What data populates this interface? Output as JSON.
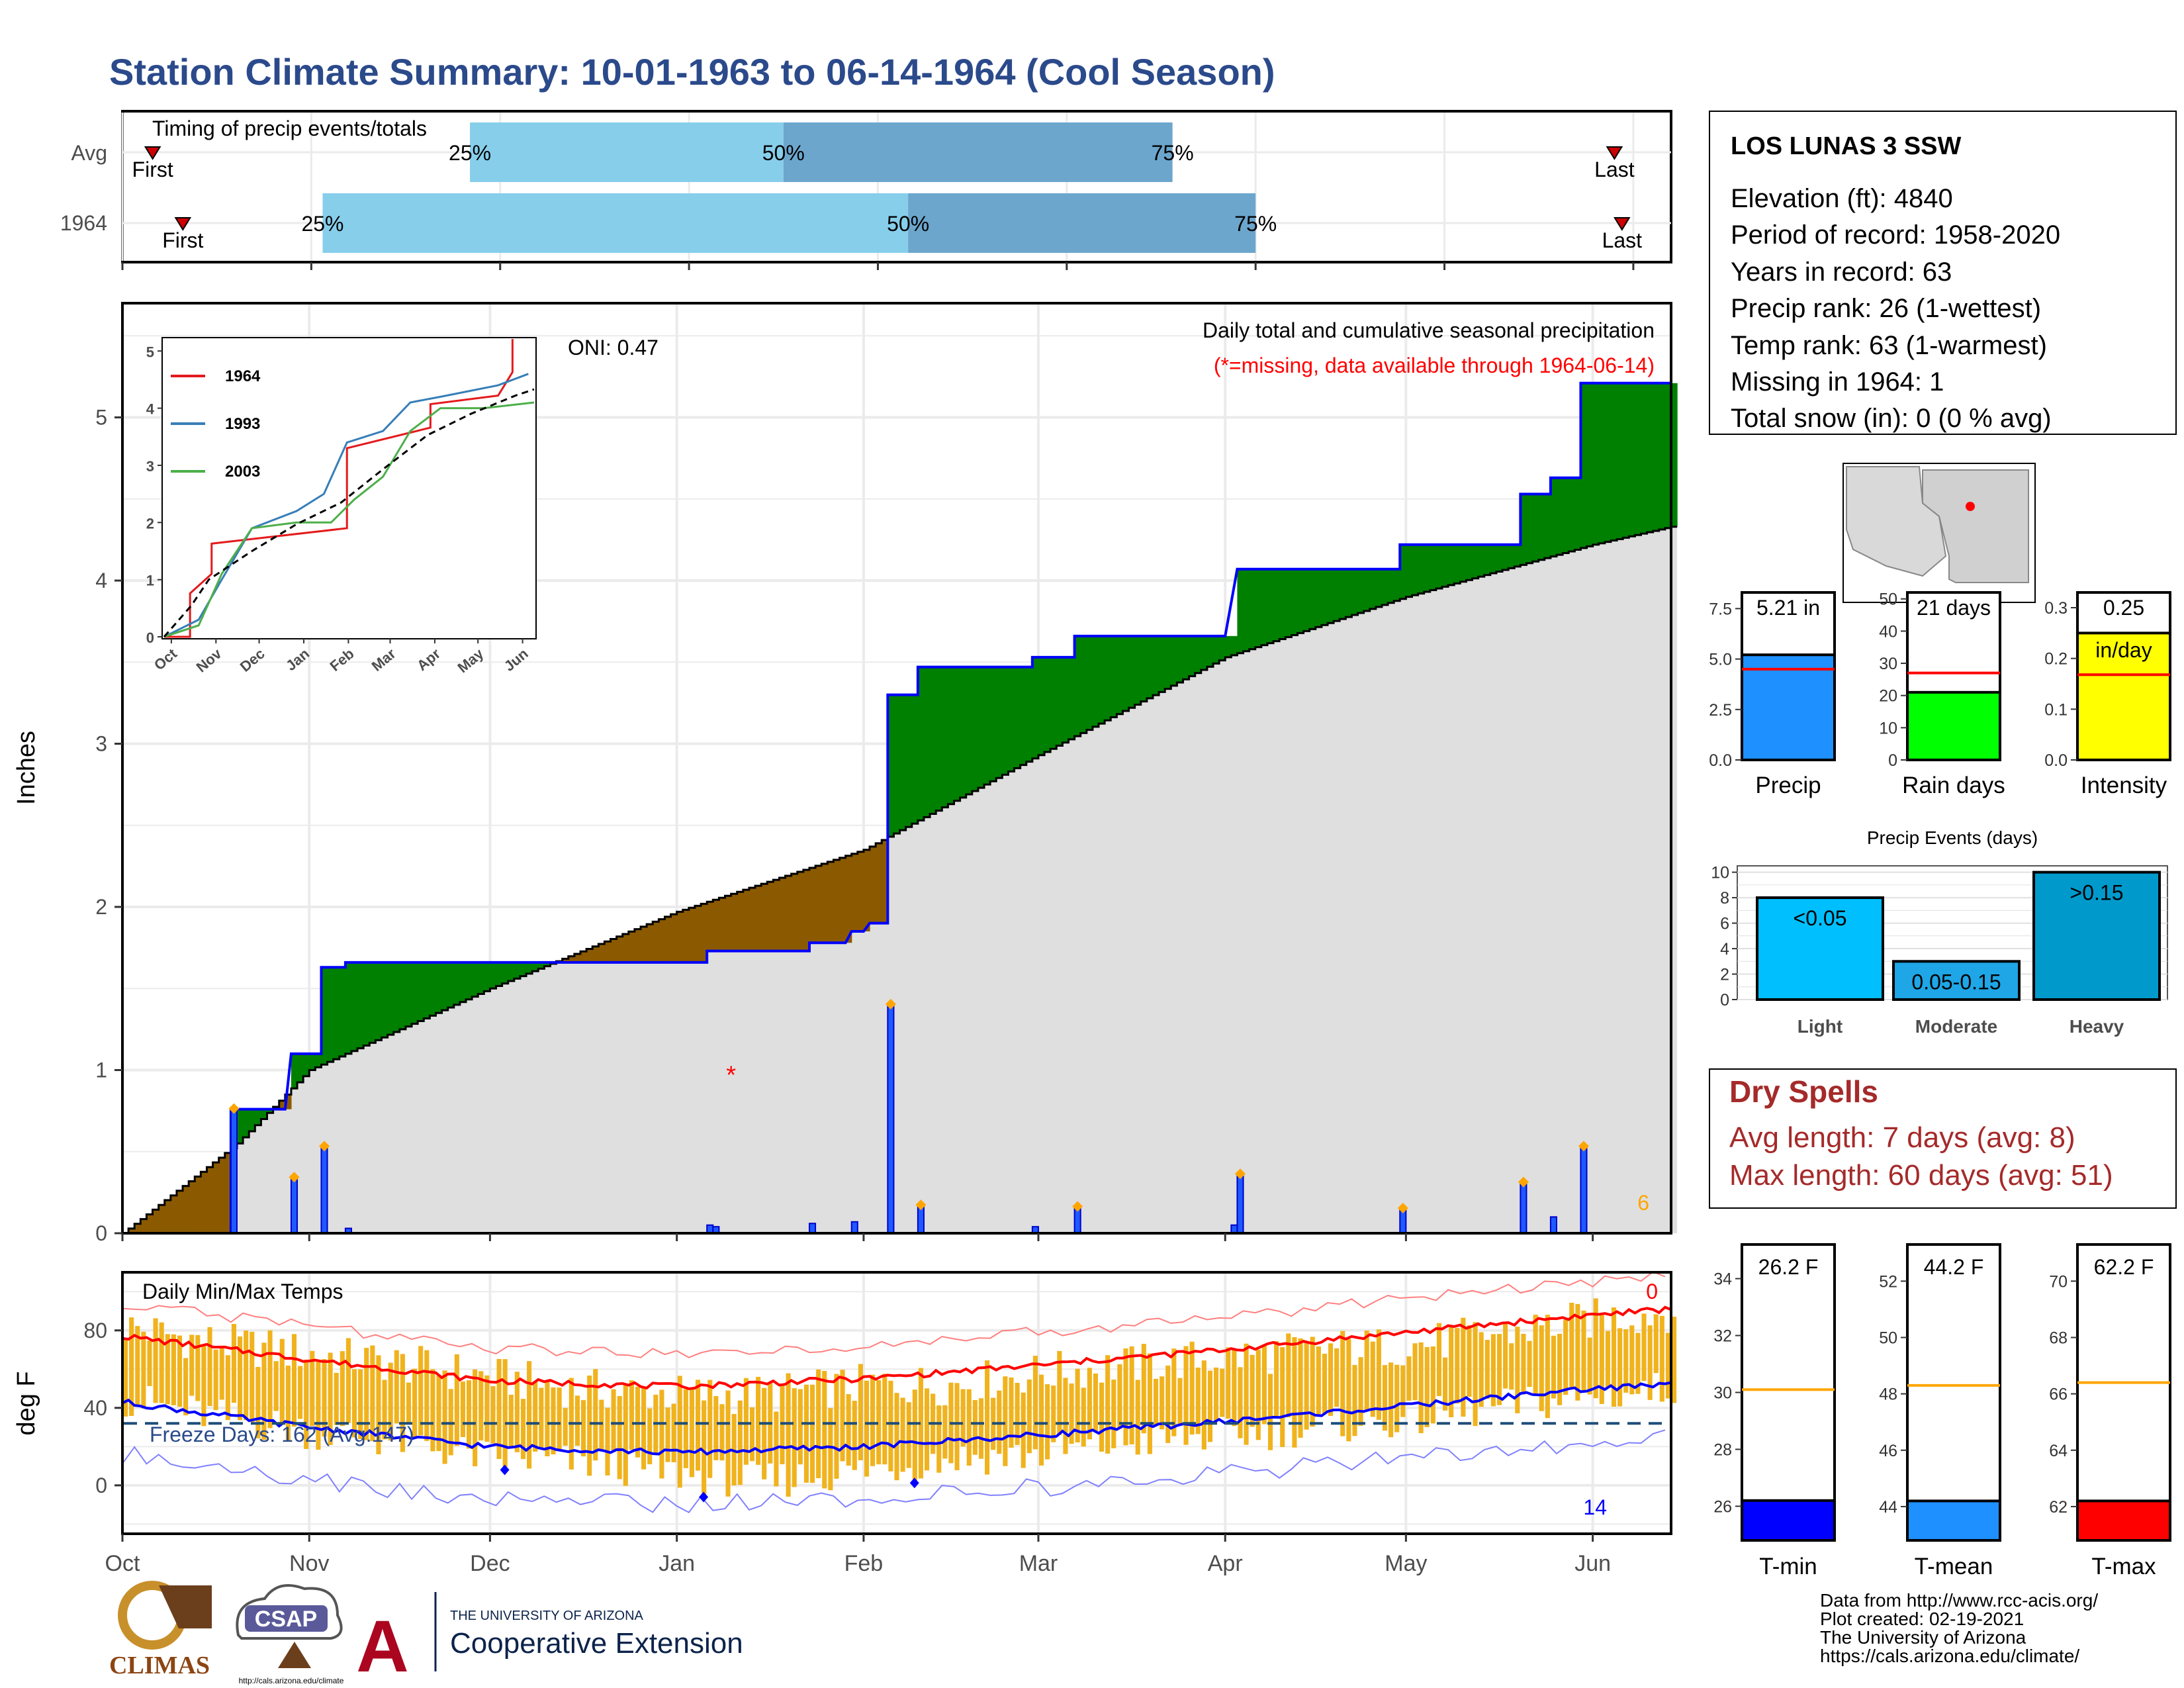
{
  "title": "Station Climate Summary: 10-01-1963 to 06-14-1964 (Cool Season)",
  "timing": {
    "label": "Timing of precip events/totals",
    "rows": [
      {
        "name": "Avg",
        "first_label": "First",
        "last_label": "Last",
        "first": 0.8,
        "p25": 9.2,
        "p50": 17.5,
        "p75": 27.8,
        "last": 39.5
      },
      {
        "name": "1964",
        "first_label": "First",
        "last_label": "Last",
        "first": 1.6,
        "p25": 5.3,
        "p50": 20.8,
        "p75": 30.0,
        "last": 39.7
      }
    ],
    "pct_labels": [
      "25%",
      "50%",
      "75%"
    ],
    "xlim": [
      0,
      41
    ]
  },
  "main": {
    "ylabel": "Inches",
    "title": "Daily total and cumulative seasonal precipitation",
    "missing_note": "(*=missing, data available through 1964-06-14)",
    "oni": "ONI: 0.47",
    "missing_marker": "*",
    "count_label": "6",
    "ylim": [
      0,
      5.7
    ],
    "yticks": [
      "0",
      "1",
      "2",
      "3",
      "4",
      "5"
    ],
    "month_ticks": [
      "Oct",
      "Nov",
      "Dec",
      "Jan",
      "Feb",
      "Mar",
      "Apr",
      "May",
      "Jun"
    ]
  },
  "inset": {
    "yticks": [
      "0",
      "1",
      "2",
      "3",
      "4",
      "5"
    ],
    "xticks": [
      "Oct",
      "Nov",
      "Dec",
      "Jan",
      "Feb",
      "Mar",
      "Apr",
      "May",
      "Jun"
    ],
    "legend": [
      {
        "name": "1964",
        "color": "#e41a1c"
      },
      {
        "name": "1993",
        "color": "#377eb8"
      },
      {
        "name": "2003",
        "color": "#4daf4a"
      }
    ]
  },
  "temp": {
    "ylabel": "deg F",
    "title": "Daily Min/Max Temps",
    "freeze_label": "Freeze Days: 162 (Avg:147)",
    "count_top": "0",
    "count_bottom": "14",
    "yticks": [
      "0",
      "40",
      "80"
    ],
    "ylim": [
      -25,
      110
    ]
  },
  "station": {
    "name": "LOS LUNAS 3 SSW",
    "lines": [
      "Elevation (ft): 4840",
      "Period of record: 1958-2020",
      "Years in record: 63",
      "Precip rank: 26 (1-wettest)",
      "Temp rank: 63 (1-warmest)",
      "Missing in 1964: 1",
      "Total snow (in): 0 (0 % avg)"
    ]
  },
  "summary_bars": [
    {
      "label": "Precip",
      "value": 5.21,
      "value_label": "5.21 in",
      "avg": 4.5,
      "ymax": 8.3,
      "ticks": [
        "0.0",
        "2.5",
        "5.0",
        "7.5"
      ],
      "tick_vals": [
        0,
        2.5,
        5,
        7.5
      ],
      "color": "#1e90ff"
    },
    {
      "label": "Rain days",
      "value": 21,
      "value_label": "21 days",
      "avg": 27,
      "ymax": 52,
      "ticks": [
        "0",
        "10",
        "20",
        "30",
        "40",
        "50"
      ],
      "tick_vals": [
        0,
        10,
        20,
        30,
        40,
        50
      ],
      "color": "#00ff00"
    },
    {
      "label": "Intensity",
      "value": 0.25,
      "value_label": "0.25",
      "unit_label": "in/day",
      "avg": 0.168,
      "ymax": 0.33,
      "ticks": [
        "0.0",
        "0.1",
        "0.2",
        "0.3"
      ],
      "tick_vals": [
        0,
        0.1,
        0.2,
        0.3
      ],
      "color": "#ffff00"
    }
  ],
  "events": {
    "title": "Precip Events (days)",
    "ylim": [
      0,
      10.5
    ],
    "yticks": [
      "0",
      "2",
      "4",
      "6",
      "8",
      "10"
    ],
    "bars": [
      {
        "category": "Light",
        "label": "<0.05",
        "value": 8,
        "color": "#00bfff"
      },
      {
        "category": "Moderate",
        "label": "0.05-0.15",
        "value": 3,
        "color": "#1ea6e6"
      },
      {
        "category": "Heavy",
        "label": ">0.15",
        "value": 10,
        "color": "#0099cc"
      }
    ]
  },
  "dry_spells": {
    "title": "Dry Spells",
    "avg": "Avg length: 7 days (avg: 8)",
    "max": "Max length: 60 days (avg: 51)"
  },
  "temp_bars": [
    {
      "label": "T-min",
      "value": 26.2,
      "value_label": "26.2 F",
      "avg": 30.1,
      "ymin": 24.8,
      "ymax": 35.2,
      "ticks": [
        "26",
        "28",
        "30",
        "32",
        "34"
      ],
      "tick_vals": [
        26,
        28,
        30,
        32,
        34
      ],
      "color": "#0000ff"
    },
    {
      "label": "T-mean",
      "value": 44.2,
      "value_label": "44.2 F",
      "avg": 48.3,
      "ymin": 42.8,
      "ymax": 53.3,
      "ticks": [
        "44",
        "46",
        "48",
        "50",
        "52"
      ],
      "tick_vals": [
        44,
        46,
        48,
        50,
        52
      ],
      "color": "#1e90ff"
    },
    {
      "label": "T-max",
      "value": 62.2,
      "value_label": "62.2 F",
      "avg": 66.4,
      "ymin": 60.8,
      "ymax": 71.3,
      "ticks": [
        "62",
        "64",
        "66",
        "68",
        "70"
      ],
      "tick_vals": [
        62,
        64,
        66,
        68,
        70
      ],
      "color": "#ff0000"
    }
  ],
  "credits": [
    "Data from http://www.rcc-acis.org/",
    "Plot created: 02-19-2021",
    "The University of Arizona",
    "https://cals.arizona.edu/climate/"
  ],
  "logos": {
    "climas": "CLIMAS",
    "csap": "CSAP",
    "csap_url": "http://cals.arizona.edu/climate",
    "ua_line1": "THE UNIVERSITY OF ARIZONA",
    "ua_line2": "Cooperative Extension"
  },
  "chart_data": [
    {
      "type": "area",
      "title": "Daily total and cumulative seasonal precipitation",
      "ylabel": "Inches",
      "ylim": [
        0,
        5.7
      ],
      "x_unit": "date",
      "cumulative_1964": [
        {
          "x": "1963-10-01",
          "y": 0.0
        },
        {
          "x": "1963-10-19",
          "y": 0.0
        },
        {
          "x": "1963-10-19",
          "y": 0.76
        },
        {
          "x": "1963-10-28",
          "y": 0.76
        },
        {
          "x": "1963-10-29",
          "y": 1.1
        },
        {
          "x": "1963-11-03",
          "y": 1.1
        },
        {
          "x": "1963-11-03",
          "y": 1.63
        },
        {
          "x": "1963-11-07",
          "y": 1.63
        },
        {
          "x": "1963-11-07",
          "y": 1.66
        },
        {
          "x": "1964-01-06",
          "y": 1.66
        },
        {
          "x": "1964-01-06",
          "y": 1.73
        },
        {
          "x": "1964-01-23",
          "y": 1.73
        },
        {
          "x": "1964-01-23",
          "y": 1.78
        },
        {
          "x": "1964-01-29",
          "y": 1.78
        },
        {
          "x": "1964-01-30",
          "y": 1.85
        },
        {
          "x": "1964-02-01",
          "y": 1.85
        },
        {
          "x": "1964-02-02",
          "y": 1.9
        },
        {
          "x": "1964-02-05",
          "y": 1.9
        },
        {
          "x": "1964-02-05",
          "y": 3.3
        },
        {
          "x": "1964-02-10",
          "y": 3.3
        },
        {
          "x": "1964-02-10",
          "y": 3.47
        },
        {
          "x": "1964-02-29",
          "y": 3.47
        },
        {
          "x": "1964-02-29",
          "y": 3.53
        },
        {
          "x": "1964-03-07",
          "y": 3.53
        },
        {
          "x": "1964-03-07",
          "y": 3.66
        },
        {
          "x": "1964-04-01",
          "y": 3.66
        },
        {
          "x": "1964-04-03",
          "y": 4.07
        },
        {
          "x": "1964-04-30",
          "y": 4.07
        },
        {
          "x": "1964-04-30",
          "y": 4.22
        },
        {
          "x": "1964-05-20",
          "y": 4.22
        },
        {
          "x": "1964-05-20",
          "y": 4.53
        },
        {
          "x": "1964-05-25",
          "y": 4.53
        },
        {
          "x": "1964-05-25",
          "y": 4.63
        },
        {
          "x": "1964-05-30",
          "y": 4.63
        },
        {
          "x": "1964-05-30",
          "y": 5.21
        },
        {
          "x": "1964-06-14",
          "y": 5.21
        }
      ],
      "cumulative_avg": [
        {
          "x": "1963-10-01",
          "y": 0.0
        },
        {
          "x": "1963-10-20",
          "y": 0.55
        },
        {
          "x": "1963-11-01",
          "y": 1.0
        },
        {
          "x": "1963-12-01",
          "y": 1.5
        },
        {
          "x": "1964-01-01",
          "y": 1.97
        },
        {
          "x": "1964-02-01",
          "y": 2.35
        },
        {
          "x": "1964-03-01",
          "y": 2.93
        },
        {
          "x": "1964-04-01",
          "y": 3.53
        },
        {
          "x": "1964-05-01",
          "y": 3.9
        },
        {
          "x": "1964-06-01",
          "y": 4.22
        },
        {
          "x": "1964-06-14",
          "y": 4.33
        }
      ],
      "daily_1964": [
        {
          "x": "1963-10-19",
          "y": 0.76
        },
        {
          "x": "1963-10-29",
          "y": 0.34
        },
        {
          "x": "1963-11-03",
          "y": 0.53
        },
        {
          "x": "1963-11-07",
          "y": 0.03
        },
        {
          "x": "1964-01-06",
          "y": 0.05
        },
        {
          "x": "1964-01-07",
          "y": 0.04
        },
        {
          "x": "1964-01-23",
          "y": 0.06
        },
        {
          "x": "1964-01-30",
          "y": 0.07
        },
        {
          "x": "1964-02-05",
          "y": 1.4
        },
        {
          "x": "1964-02-10",
          "y": 0.17
        },
        {
          "x": "1964-02-29",
          "y": 0.04
        },
        {
          "x": "1964-03-07",
          "y": 0.16
        },
        {
          "x": "1964-04-02",
          "y": 0.05
        },
        {
          "x": "1964-04-03",
          "y": 0.36
        },
        {
          "x": "1964-04-30",
          "y": 0.15
        },
        {
          "x": "1964-05-20",
          "y": 0.31
        },
        {
          "x": "1964-05-25",
          "y": 0.1
        },
        {
          "x": "1964-05-30",
          "y": 0.53
        }
      ],
      "missing": [
        {
          "x": "1964-01-10",
          "y": 1.0
        }
      ]
    },
    {
      "type": "line",
      "title": "",
      "xlabel": "",
      "ylim": [
        0,
        5.2
      ],
      "x_unit": "date",
      "series": [
        {
          "name": "1964",
          "values": [
            {
              "x": "1963-10-01",
              "y": 0
            },
            {
              "x": "1963-10-19",
              "y": 0
            },
            {
              "x": "1963-10-19",
              "y": 0.76
            },
            {
              "x": "1963-11-03",
              "y": 1.1
            },
            {
              "x": "1963-11-03",
              "y": 1.63
            },
            {
              "x": "1964-02-05",
              "y": 1.9
            },
            {
              "x": "1964-02-05",
              "y": 3.3
            },
            {
              "x": "1964-04-03",
              "y": 3.66
            },
            {
              "x": "1964-04-03",
              "y": 4.07
            },
            {
              "x": "1964-05-20",
              "y": 4.22
            },
            {
              "x": "1964-05-30",
              "y": 4.63
            },
            {
              "x": "1964-05-30",
              "y": 5.21
            }
          ]
        },
        {
          "name": "1993",
          "values": [
            {
              "x": "1963-10-01",
              "y": 0
            },
            {
              "x": "1963-10-25",
              "y": 0.3
            },
            {
              "x": "1963-11-10",
              "y": 1.0
            },
            {
              "x": "1963-12-01",
              "y": 1.9
            },
            {
              "x": "1964-01-01",
              "y": 2.2
            },
            {
              "x": "1964-01-20",
              "y": 2.5
            },
            {
              "x": "1964-02-05",
              "y": 3.4
            },
            {
              "x": "1964-03-01",
              "y": 3.6
            },
            {
              "x": "1964-03-20",
              "y": 4.1
            },
            {
              "x": "1964-04-10",
              "y": 4.2
            },
            {
              "x": "1964-05-20",
              "y": 4.4
            },
            {
              "x": "1964-06-10",
              "y": 4.6
            }
          ]
        },
        {
          "name": "2003",
          "values": [
            {
              "x": "1963-10-01",
              "y": 0
            },
            {
              "x": "1963-10-25",
              "y": 0.2
            },
            {
              "x": "1963-11-10",
              "y": 1.1
            },
            {
              "x": "1963-12-01",
              "y": 1.9
            },
            {
              "x": "1964-01-01",
              "y": 2.0
            },
            {
              "x": "1964-01-25",
              "y": 2.0
            },
            {
              "x": "1964-02-10",
              "y": 2.4
            },
            {
              "x": "1964-03-01",
              "y": 2.8
            },
            {
              "x": "1964-03-20",
              "y": 3.6
            },
            {
              "x": "1964-04-10",
              "y": 4.0
            },
            {
              "x": "1964-05-10",
              "y": 4.0
            },
            {
              "x": "1964-06-14",
              "y": 4.1
            }
          ]
        }
      ]
    },
    {
      "type": "bar",
      "title": "Daily Min/Max Temps",
      "ylabel": "deg F",
      "ylim": [
        -25,
        110
      ],
      "freeze_line": 32,
      "x_unit": "date",
      "tmax_1964": [
        {
          "x": "1963-10-01",
          "y": 82
        },
        {
          "x": "1963-10-15",
          "y": 74
        },
        {
          "x": "1963-11-01",
          "y": 68
        },
        {
          "x": "1963-11-15",
          "y": 63
        },
        {
          "x": "1963-12-01",
          "y": 56
        },
        {
          "x": "1963-12-15",
          "y": 50
        },
        {
          "x": "1964-01-01",
          "y": 47
        },
        {
          "x": "1964-01-15",
          "y": 47
        },
        {
          "x": "1964-02-01",
          "y": 52
        },
        {
          "x": "1964-02-15",
          "y": 52
        },
        {
          "x": "1964-03-01",
          "y": 58
        },
        {
          "x": "1964-03-15",
          "y": 62
        },
        {
          "x": "1964-04-01",
          "y": 66
        },
        {
          "x": "1964-04-15",
          "y": 70
        },
        {
          "x": "1964-05-01",
          "y": 72
        },
        {
          "x": "1964-05-15",
          "y": 78
        },
        {
          "x": "1964-06-01",
          "y": 86
        },
        {
          "x": "1964-06-14",
          "y": 90
        }
      ],
      "tmin_1964": [
        {
          "x": "1963-10-01",
          "y": 45
        },
        {
          "x": "1963-10-15",
          "y": 36
        },
        {
          "x": "1963-11-01",
          "y": 28
        },
        {
          "x": "1963-11-15",
          "y": 23
        },
        {
          "x": "1963-12-01",
          "y": 14
        },
        {
          "x": "1963-12-15",
          "y": 12
        },
        {
          "x": "1964-01-01",
          "y": 6
        },
        {
          "x": "1964-01-15",
          "y": 2
        },
        {
          "x": "1964-02-01",
          "y": 8
        },
        {
          "x": "1964-02-15",
          "y": 14
        },
        {
          "x": "1964-03-01",
          "y": 16
        },
        {
          "x": "1964-03-15",
          "y": 22
        },
        {
          "x": "1964-04-01",
          "y": 26
        },
        {
          "x": "1964-04-15",
          "y": 30
        },
        {
          "x": "1964-05-01",
          "y": 34
        },
        {
          "x": "1964-05-15",
          "y": 40
        },
        {
          "x": "1964-06-01",
          "y": 46
        },
        {
          "x": "1964-06-14",
          "y": 50
        }
      ],
      "avg_tmax": [
        {
          "x": "1963-10-01",
          "y": 77
        },
        {
          "x": "1963-11-01",
          "y": 65
        },
        {
          "x": "1963-12-01",
          "y": 54
        },
        {
          "x": "1964-01-01",
          "y": 51
        },
        {
          "x": "1964-02-01",
          "y": 55
        },
        {
          "x": "1964-03-01",
          "y": 62
        },
        {
          "x": "1964-04-01",
          "y": 70
        },
        {
          "x": "1964-05-01",
          "y": 79
        },
        {
          "x": "1964-06-01",
          "y": 88
        },
        {
          "x": "1964-06-14",
          "y": 91
        }
      ],
      "avg_tmin": [
        {
          "x": "1963-10-01",
          "y": 43
        },
        {
          "x": "1963-11-01",
          "y": 30
        },
        {
          "x": "1963-12-01",
          "y": 20
        },
        {
          "x": "1964-01-01",
          "y": 17
        },
        {
          "x": "1964-02-01",
          "y": 20
        },
        {
          "x": "1964-03-01",
          "y": 26
        },
        {
          "x": "1964-04-01",
          "y": 33
        },
        {
          "x": "1964-05-01",
          "y": 41
        },
        {
          "x": "1964-06-01",
          "y": 50
        },
        {
          "x": "1964-06-14",
          "y": 52
        }
      ]
    },
    {
      "type": "bar",
      "title": "Precip Events (days)",
      "categories": [
        "Light",
        "Moderate",
        "Heavy"
      ],
      "values": [
        8,
        3,
        10
      ],
      "ylim": [
        0,
        10.5
      ]
    },
    {
      "type": "bar",
      "categories": [
        "Precip",
        "Rain days",
        "Intensity"
      ],
      "values": [
        5.21,
        21,
        0.25
      ],
      "avg": [
        4.5,
        27,
        0.168
      ]
    },
    {
      "type": "bar",
      "categories": [
        "T-min",
        "T-mean",
        "T-max"
      ],
      "values": [
        26.2,
        44.2,
        62.2
      ],
      "avg": [
        30.1,
        48.3,
        66.4
      ]
    }
  ]
}
